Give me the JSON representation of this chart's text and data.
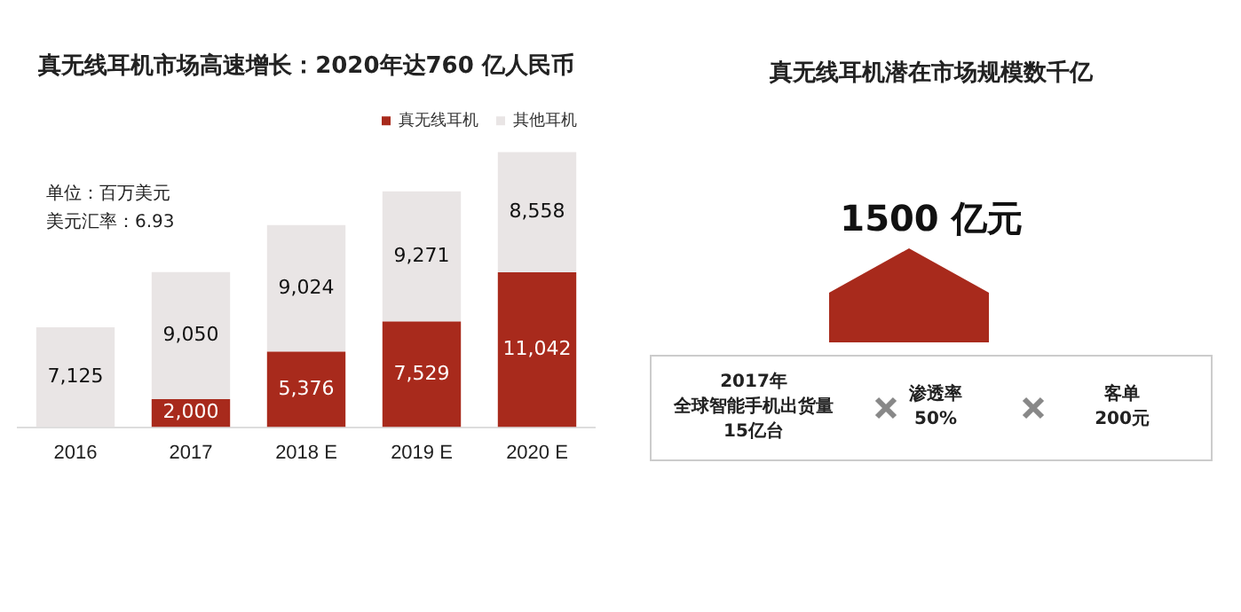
{
  "chart_data": [
    {
      "type": "bar",
      "title": "真无线耳机市场高速增长：2020年达760 亿人民币",
      "categories": [
        "2016",
        "2017",
        "2018 E",
        "2019 E",
        "2020 E"
      ],
      "stacked": true,
      "legend": "top",
      "grid": false,
      "tick_labels": "x",
      "annotations": [
        "单位：百万美元",
        "美元汇率：6.93"
      ],
      "series": [
        {
          "name": "真无线耳机",
          "color": "#a82a1c",
          "values": [
            null,
            2000,
            5376,
            7529,
            11042
          ],
          "value_labels": [
            null,
            "2,000",
            "5,376",
            "7,529",
            "11,042"
          ]
        },
        {
          "name": "其他耳机",
          "color": "#e9e5e5",
          "values": [
            7125,
            9050,
            9024,
            9271,
            8558
          ],
          "value_labels": [
            "7,125",
            "9,050",
            "9,024",
            "9,271",
            "8,558"
          ]
        }
      ]
    },
    {
      "type": "other",
      "title": "真无线耳机潜在市场规模数千亿",
      "annotations": [
        "1500 亿元",
        "2017年",
        "全球智能手机出货量",
        "15亿台",
        "渗透率",
        "50%",
        "客单",
        "200元"
      ]
    }
  ]
}
